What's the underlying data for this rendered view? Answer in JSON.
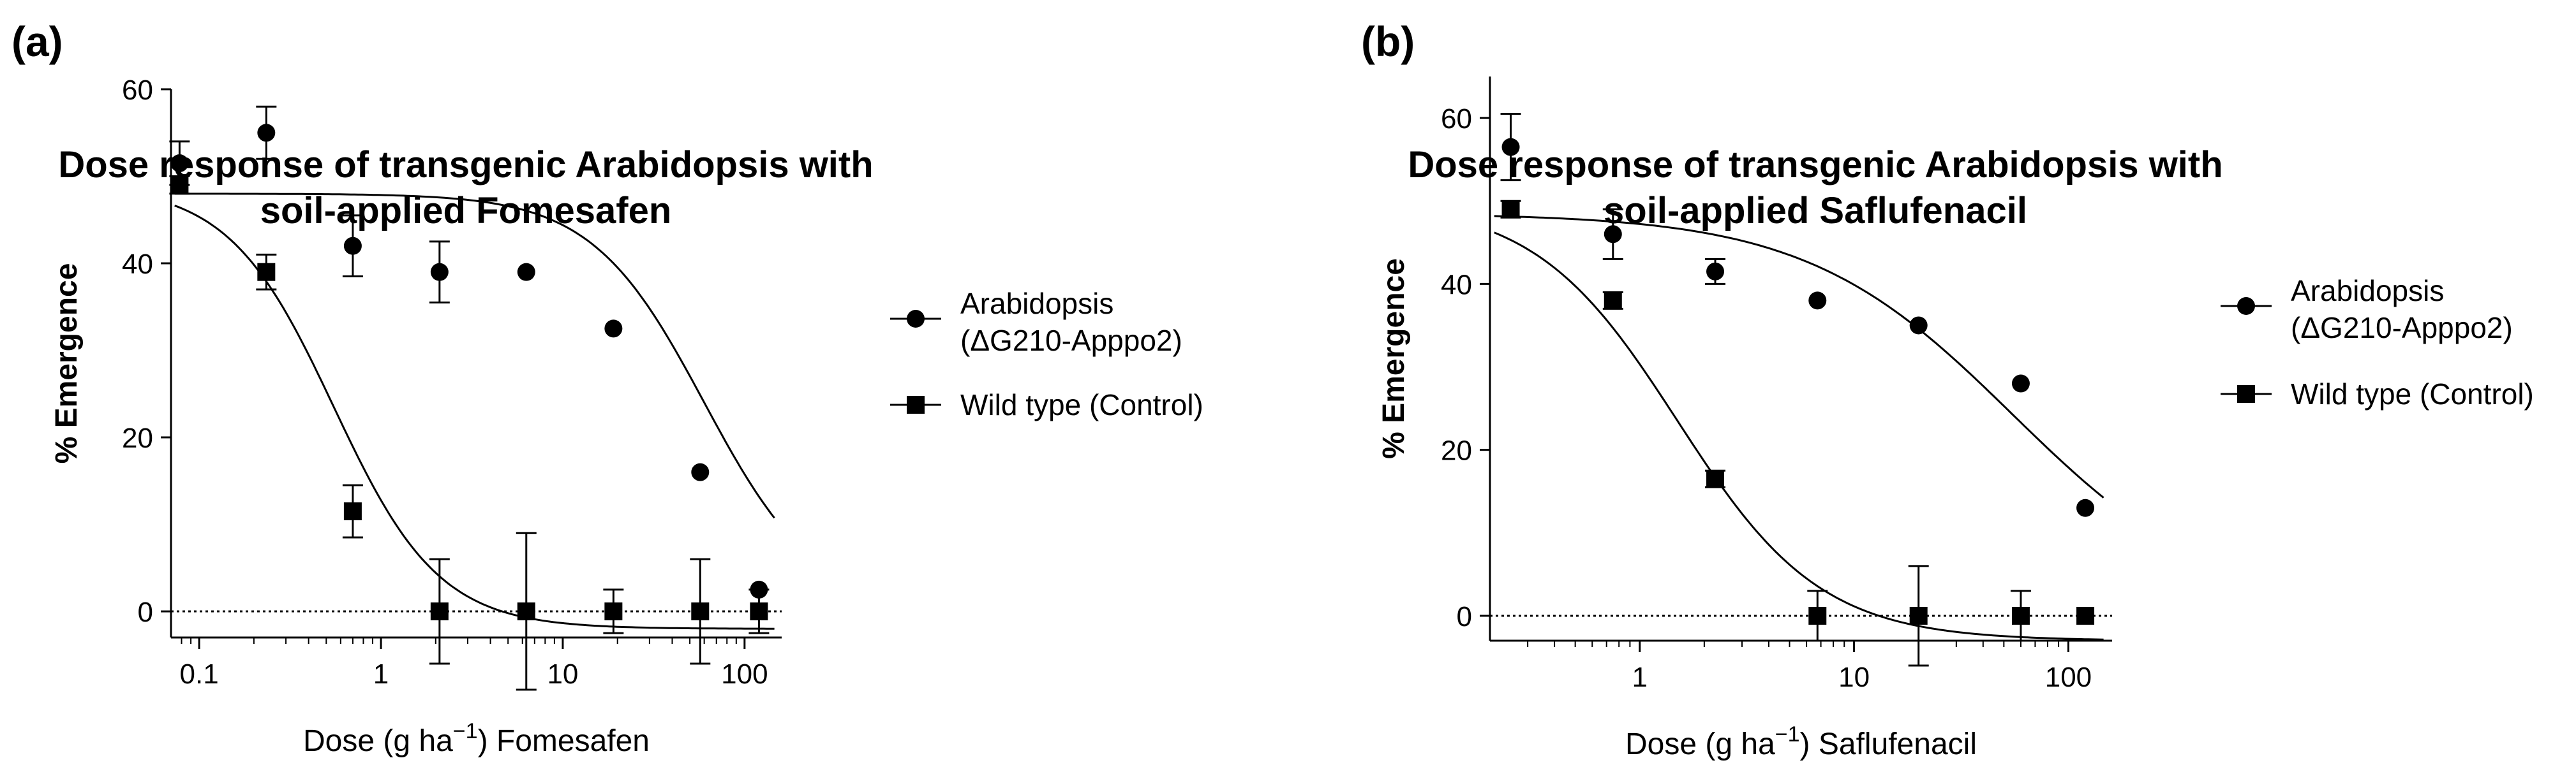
{
  "chart_data": [
    {
      "panel": "(a)",
      "type": "scatter",
      "title_lines": [
        "Dose response of transgenic Arabidopsis with",
        "soil-applied Fomesafen"
      ],
      "xlabel": {
        "pre": "Dose (g ha",
        "sup": "−1",
        "post": ") Fomesafen"
      },
      "ylabel": "% Emergence",
      "xscale": "log",
      "xlim": [
        0.07,
        160
      ],
      "ylim": [
        -3,
        60
      ],
      "xticks": [
        0.1,
        1,
        10,
        100
      ],
      "xtick_labels": [
        "0.1",
        "1",
        "10",
        "100"
      ],
      "yticks": [
        0,
        20,
        40,
        60
      ],
      "ytick_labels": [
        "0",
        "20",
        "40",
        "60"
      ],
      "legend_position": "right",
      "series": [
        {
          "name": "Arabidopsis (ΔG210-Apppo2)",
          "legend_lines": [
            "Arabidopsis",
            "(ΔG210-Apppo2)"
          ],
          "marker": "circle",
          "x": [
            0.078,
            0.234,
            0.7,
            2.1,
            6.3,
            19,
            57,
            120
          ],
          "y": [
            51.5,
            55,
            42,
            39,
            39,
            32.5,
            16,
            2.5
          ],
          "err": [
            2.5,
            3,
            3.5,
            3.5,
            0,
            0,
            0,
            0
          ],
          "fit": {
            "top": 48,
            "bottom": 0,
            "ec50": 60,
            "hill": 1.4
          }
        },
        {
          "name": "Wild type (Control)",
          "legend_lines": [
            "Wild type (Control)"
          ],
          "marker": "square",
          "x": [
            0.078,
            0.234,
            0.7,
            2.1,
            6.3,
            19,
            57,
            120
          ],
          "y": [
            49,
            39,
            11.5,
            0,
            0,
            0,
            0,
            0
          ],
          "err": [
            1,
            2,
            3,
            6,
            9,
            2.5,
            6,
            2.5
          ],
          "fit": {
            "top": 49,
            "bottom": -2,
            "ec50": 0.55,
            "hill": 1.5
          }
        }
      ]
    },
    {
      "panel": "(b)",
      "type": "scatter",
      "title_lines": [
        "Dose response of transgenic Arabidopsis with",
        "soil-applied Saflufenacil"
      ],
      "xlabel": {
        "pre": "Dose (g ha",
        "sup": "−1",
        "post": ") Saflufenacil"
      },
      "ylabel": "% Emergence",
      "xscale": "log",
      "xlim": [
        0.2,
        160
      ],
      "ylim": [
        -3,
        65
      ],
      "xticks": [
        1,
        10,
        100
      ],
      "xtick_labels": [
        "1",
        "10",
        "100"
      ],
      "yticks": [
        0,
        20,
        40,
        60
      ],
      "ytick_labels": [
        "0",
        "20",
        "40",
        "60"
      ],
      "legend_position": "right",
      "series": [
        {
          "name": "Arabidopsis (ΔG210-Apppo2)",
          "legend_lines": [
            "Arabidopsis",
            "(ΔG210-Apppo2)"
          ],
          "marker": "circle",
          "x": [
            0.25,
            0.75,
            2.25,
            6.75,
            20,
            60,
            120
          ],
          "y": [
            56.5,
            46,
            41.5,
            38,
            35,
            28,
            13
          ],
          "err": [
            4,
            3,
            1.5,
            0,
            0,
            0,
            0
          ],
          "fit": {
            "top": 48.5,
            "bottom": 0,
            "ec50": 55,
            "hill": 0.9
          }
        },
        {
          "name": "Wild type (Control)",
          "legend_lines": [
            "Wild type (Control)"
          ],
          "marker": "square",
          "x": [
            0.25,
            0.75,
            2.25,
            6.75,
            20,
            60,
            120
          ],
          "y": [
            49,
            38,
            16.5,
            0,
            0,
            0,
            0
          ],
          "err": [
            1,
            1,
            1,
            3,
            6,
            3,
            0
          ],
          "fit": {
            "top": 50,
            "bottom": -3,
            "ec50": 1.5,
            "hill": 1.3
          }
        }
      ]
    }
  ]
}
